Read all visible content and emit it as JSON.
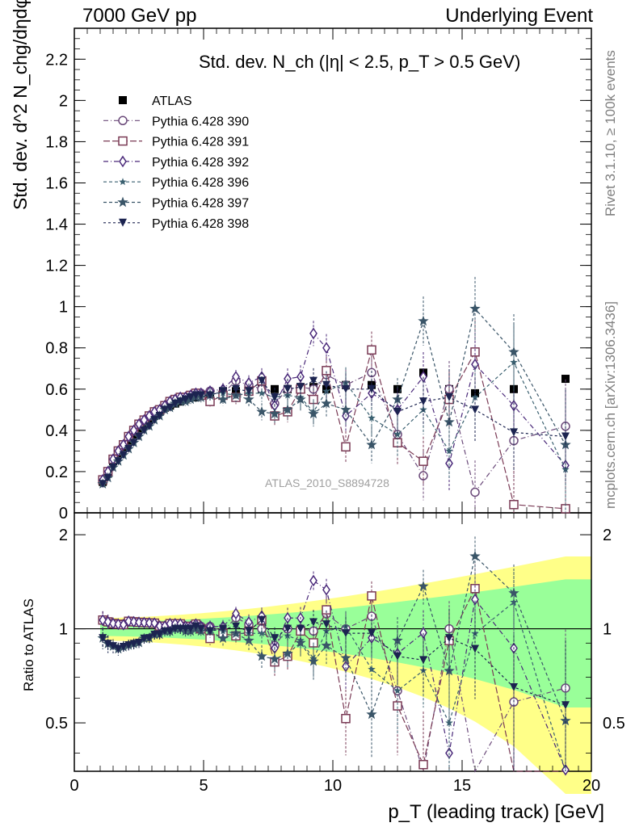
{
  "header": {
    "left": "7000 GeV pp",
    "right": "Underlying Event"
  },
  "side": {
    "rivet": "Rivet 3.1.10, ≥ 100k events",
    "mcplots": "mcplots.cern.ch [arXiv:1306.3436]"
  },
  "watermark": "ATLAS_2010_S8894728",
  "chart_data": {
    "type": "scatter",
    "title": "Std. dev. N_ch (|η| < 2.5, p_T > 0.5 GeV)",
    "xlabel": "p_T (leading track) [GeV]",
    "ylabel": "Std. dev. d^2 N_chg/dηdφ",
    "ylabel_ratio": "Ratio to ATLAS",
    "xlim": [
      0,
      20
    ],
    "ylim": [
      0,
      2.35
    ],
    "ylim_ratio": [
      0.35,
      2.35
    ],
    "ratio_scale": "log",
    "x_ticks": [
      "0",
      "5",
      "10",
      "15",
      "20"
    ],
    "y_ticks": [
      "0",
      "0.2",
      "0.4",
      "0.6",
      "0.8",
      "1",
      "1.2",
      "1.4",
      "1.6",
      "1.8",
      "2",
      "2.2"
    ],
    "ratio_ticks": [
      "0.5",
      "1",
      "2"
    ],
    "legend_position": "top-left",
    "x": [
      1.1,
      1.3,
      1.5,
      1.7,
      1.9,
      2.1,
      2.3,
      2.5,
      2.7,
      2.9,
      3.1,
      3.3,
      3.5,
      3.7,
      3.9,
      4.1,
      4.3,
      4.5,
      4.7,
      4.9,
      5.25,
      5.75,
      6.25,
      6.75,
      7.25,
      7.75,
      8.25,
      8.75,
      9.25,
      9.75,
      10.5,
      11.5,
      12.5,
      13.5,
      14.5,
      15.5,
      17.0,
      19.0
    ],
    "series": [
      {
        "name": "ATLAS",
        "marker": "square-filled",
        "color": "#000000",
        "values": [
          0.15,
          0.19,
          0.25,
          0.29,
          0.32,
          0.35,
          0.38,
          0.41,
          0.43,
          0.45,
          0.47,
          0.49,
          0.51,
          0.52,
          0.53,
          0.54,
          0.55,
          0.56,
          0.56,
          0.57,
          0.58,
          0.59,
          0.59,
          0.6,
          0.6,
          0.6,
          0.6,
          0.61,
          0.61,
          0.6,
          0.62,
          0.62,
          0.6,
          0.68,
          0.6,
          0.58,
          0.6,
          0.65
        ]
      },
      {
        "name": "Pythia 6.428 390",
        "marker": "circle-open",
        "color": "#6b4a7a",
        "values": [
          0.16,
          0.2,
          0.26,
          0.3,
          0.33,
          0.37,
          0.4,
          0.43,
          0.45,
          0.47,
          0.49,
          0.5,
          0.52,
          0.54,
          0.55,
          0.56,
          0.56,
          0.57,
          0.58,
          0.58,
          0.59,
          0.58,
          0.64,
          0.62,
          0.6,
          0.53,
          0.6,
          0.61,
          0.6,
          0.67,
          0.62,
          0.68,
          0.38,
          0.18,
          0.6,
          0.1,
          0.35,
          0.42
        ]
      },
      {
        "name": "Pythia 6.428 391",
        "marker": "square-open",
        "color": "#7a3a55",
        "values": [
          0.16,
          0.2,
          0.26,
          0.3,
          0.33,
          0.37,
          0.4,
          0.43,
          0.45,
          0.47,
          0.49,
          0.5,
          0.52,
          0.54,
          0.55,
          0.56,
          0.56,
          0.57,
          0.58,
          0.57,
          0.54,
          0.57,
          0.56,
          0.59,
          0.64,
          0.47,
          0.49,
          0.6,
          0.55,
          0.69,
          0.32,
          0.79,
          0.34,
          0.25,
          0.55,
          0.78,
          0.04,
          0.02
        ]
      },
      {
        "name": "Pythia 6.428 392",
        "marker": "diamond-open",
        "color": "#4b2a7a",
        "values": [
          0.16,
          0.2,
          0.26,
          0.3,
          0.33,
          0.37,
          0.4,
          0.43,
          0.45,
          0.47,
          0.49,
          0.5,
          0.52,
          0.54,
          0.55,
          0.56,
          0.56,
          0.57,
          0.58,
          0.58,
          0.59,
          0.6,
          0.66,
          0.63,
          0.66,
          0.52,
          0.65,
          0.66,
          0.87,
          0.8,
          0.47,
          0.58,
          0.5,
          0.66,
          0.24,
          0.72,
          0.52,
          0.23
        ]
      },
      {
        "name": "Pythia 6.428 396",
        "marker": "star-small",
        "color": "#3a6070",
        "values": [
          0.14,
          0.17,
          0.22,
          0.25,
          0.28,
          0.31,
          0.34,
          0.37,
          0.4,
          0.42,
          0.45,
          0.47,
          0.5,
          0.51,
          0.53,
          0.54,
          0.55,
          0.56,
          0.56,
          0.57,
          0.58,
          0.58,
          0.57,
          0.58,
          0.58,
          0.56,
          0.57,
          0.56,
          0.49,
          0.59,
          0.63,
          0.46,
          0.38,
          0.5,
          0.3,
          0.56,
          0.73,
          0.21
        ]
      },
      {
        "name": "Pythia 6.428 397",
        "marker": "star",
        "color": "#3a5568",
        "values": [
          0.14,
          0.17,
          0.22,
          0.25,
          0.28,
          0.31,
          0.34,
          0.37,
          0.4,
          0.42,
          0.45,
          0.47,
          0.5,
          0.51,
          0.53,
          0.54,
          0.54,
          0.55,
          0.56,
          0.56,
          0.57,
          0.55,
          0.57,
          0.55,
          0.49,
          0.48,
          0.5,
          0.55,
          0.48,
          0.53,
          0.5,
          0.33,
          0.55,
          0.93,
          0.44,
          0.99,
          0.78,
          0.33
        ]
      },
      {
        "name": "Pythia 6.428 398",
        "marker": "triangle-down-filled",
        "color": "#1c2450",
        "values": [
          0.14,
          0.17,
          0.22,
          0.25,
          0.28,
          0.31,
          0.34,
          0.37,
          0.4,
          0.42,
          0.45,
          0.47,
          0.5,
          0.51,
          0.53,
          0.54,
          0.55,
          0.56,
          0.57,
          0.57,
          0.57,
          0.59,
          0.6,
          0.59,
          0.64,
          0.56,
          0.6,
          0.61,
          0.64,
          0.62,
          0.6,
          0.6,
          0.49,
          0.54,
          0.56,
          0.5,
          0.39,
          0.37
        ]
      }
    ]
  }
}
